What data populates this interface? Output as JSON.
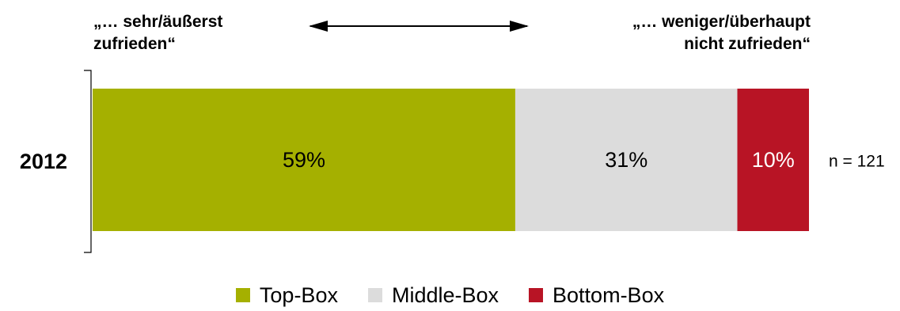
{
  "header": {
    "left_line1": "„… sehr/äußerst",
    "left_line2": "zufrieden“",
    "right_line1": "„… weniger/überhaupt",
    "right_line2": "nicht zufrieden“"
  },
  "colors": {
    "top_box": "#a5b000",
    "middle_box": "#dcdcdc",
    "bottom_box": "#b81425"
  },
  "chart_data": {
    "type": "bar",
    "orientation": "horizontal",
    "stacked": true,
    "categories": [
      "2012"
    ],
    "series": [
      {
        "name": "Top-Box",
        "values": [
          59
        ],
        "label": "59%"
      },
      {
        "name": "Middle-Box",
        "values": [
          31
        ],
        "label": "31%"
      },
      {
        "name": "Bottom-Box",
        "values": [
          10
        ],
        "label": "10%"
      }
    ],
    "annotation": "n = 121",
    "xlim": [
      0,
      100
    ],
    "grid": false,
    "legend": "bottom"
  },
  "legend": [
    {
      "label": "Top-Box"
    },
    {
      "label": "Middle-Box"
    },
    {
      "label": "Bottom-Box"
    }
  ]
}
